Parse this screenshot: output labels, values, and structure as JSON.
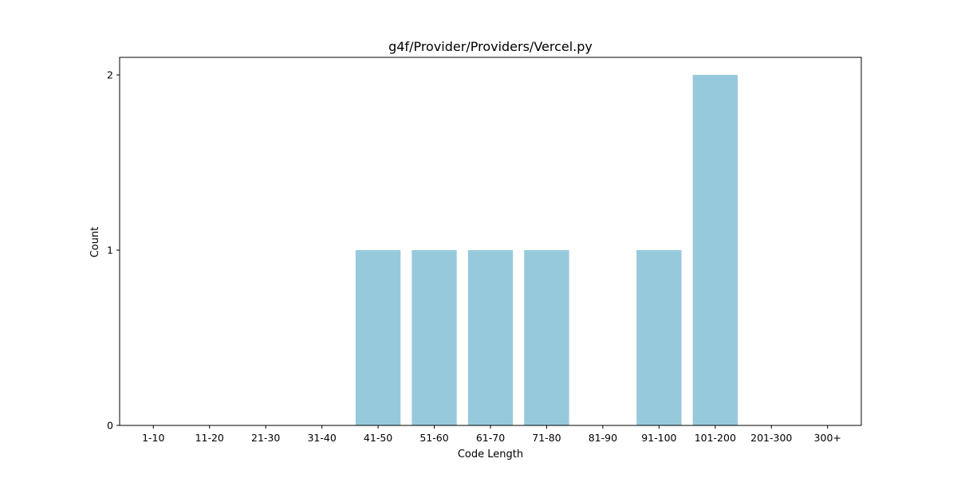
{
  "chart_data": {
    "type": "bar",
    "title": "g4f/Provider/Providers/Vercel.py",
    "xlabel": "Code Length",
    "ylabel": "Count",
    "categories": [
      "1-10",
      "11-20",
      "21-30",
      "31-40",
      "41-50",
      "51-60",
      "61-70",
      "71-80",
      "81-90",
      "91-100",
      "101-200",
      "201-300",
      "300+"
    ],
    "values": [
      0,
      0,
      0,
      0,
      1,
      1,
      1,
      1,
      0,
      1,
      2,
      0,
      0
    ],
    "ylim": [
      0,
      2.1
    ],
    "yticks": [
      0,
      1,
      2
    ],
    "grid": false,
    "bar_color": "#96c9dc"
  }
}
